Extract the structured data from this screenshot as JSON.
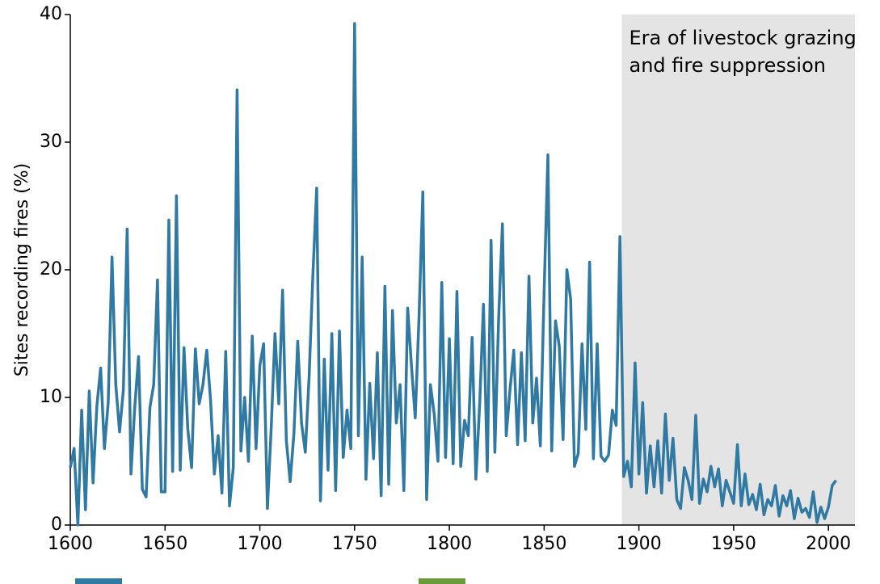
{
  "chart_data": {
    "type": "line",
    "y_label": "Sites recording fires (%)",
    "color": "#2f79a3",
    "swatch_colors": [
      "#2f79a3",
      "#6b9a3c"
    ],
    "shaded_region": {
      "x": [
        1891,
        2014
      ],
      "color": "#e4e4e4",
      "label": [
        "Era of livestock grazing",
        "and fire suppression"
      ]
    },
    "xlim": [
      1600,
      2014
    ],
    "ylim": [
      0,
      40
    ],
    "xticks": [
      1600,
      1650,
      1700,
      1750,
      1800,
      1850,
      1900,
      1950,
      2000
    ],
    "yticks": [
      0,
      10,
      20,
      30,
      40
    ],
    "x": [
      1600,
      1602,
      1604,
      1606,
      1608,
      1610,
      1612,
      1614,
      1616,
      1618,
      1620,
      1622,
      1624,
      1626,
      1628,
      1630,
      1632,
      1634,
      1636,
      1638,
      1640,
      1642,
      1644,
      1646,
      1648,
      1650,
      1652,
      1654,
      1656,
      1658,
      1660,
      1662,
      1664,
      1666,
      1668,
      1670,
      1672,
      1674,
      1676,
      1678,
      1680,
      1682,
      1684,
      1686,
      1688,
      1690,
      1692,
      1694,
      1696,
      1698,
      1700,
      1702,
      1704,
      1706,
      1708,
      1710,
      1712,
      1714,
      1716,
      1718,
      1720,
      1722,
      1724,
      1726,
      1728,
      1730,
      1732,
      1734,
      1736,
      1738,
      1740,
      1742,
      1744,
      1746,
      1748,
      1750,
      1752,
      1754,
      1756,
      1758,
      1760,
      1762,
      1764,
      1766,
      1768,
      1770,
      1772,
      1774,
      1776,
      1778,
      1780,
      1782,
      1784,
      1786,
      1788,
      1790,
      1792,
      1794,
      1796,
      1798,
      1800,
      1802,
      1804,
      1806,
      1808,
      1810,
      1812,
      1814,
      1816,
      1818,
      1820,
      1822,
      1824,
      1826,
      1828,
      1830,
      1832,
      1834,
      1836,
      1838,
      1840,
      1842,
      1844,
      1846,
      1848,
      1850,
      1852,
      1854,
      1856,
      1858,
      1860,
      1862,
      1864,
      1866,
      1868,
      1870,
      1872,
      1874,
      1876,
      1878,
      1880,
      1882,
      1884,
      1886,
      1888,
      1890,
      1892,
      1894,
      1896,
      1898,
      1900,
      1902,
      1904,
      1906,
      1908,
      1910,
      1912,
      1914,
      1916,
      1918,
      1920,
      1922,
      1924,
      1926,
      1928,
      1930,
      1932,
      1934,
      1936,
      1938,
      1940,
      1942,
      1944,
      1946,
      1948,
      1950,
      1952,
      1954,
      1956,
      1958,
      1960,
      1962,
      1964,
      1966,
      1968,
      1970,
      1972,
      1974,
      1976,
      1978,
      1980,
      1982,
      1984,
      1986,
      1988,
      1990,
      1992,
      1994,
      1996,
      1998,
      2000,
      2002,
      2004
    ],
    "values": [
      4.5,
      6,
      0,
      9,
      1.2,
      10.5,
      3.3,
      9.3,
      12.3,
      6,
      9.6,
      21,
      11,
      7.3,
      10.6,
      23.2,
      4,
      9.2,
      13.2,
      2.8,
      2.2,
      9.2,
      11,
      19.2,
      2.6,
      2.6,
      23.9,
      4.2,
      25.8,
      4.3,
      13.9,
      7.5,
      4.5,
      13.8,
      9.5,
      11,
      13.7,
      9.8,
      4,
      7,
      2.5,
      13.6,
      1.5,
      4.5,
      34.1,
      5.8,
      10,
      5,
      14.8,
      6,
      12.5,
      14.2,
      1.3,
      7.6,
      15,
      9.5,
      18.4,
      6.6,
      3.4,
      7.2,
      14.4,
      8,
      5.7,
      11.6,
      19.6,
      26.4,
      1.9,
      13,
      4.3,
      15,
      2.7,
      15.2,
      5.3,
      9,
      6,
      39.3,
      7,
      21,
      3.6,
      11.1,
      5.2,
      13.5,
      2.3,
      18.7,
      3.2,
      16.8,
      8,
      11,
      2.7,
      17,
      12.5,
      8.4,
      16.3,
      26.1,
      2,
      11,
      8.7,
      5,
      19,
      5.3,
      14.6,
      4.8,
      18.3,
      4.6,
      8.2,
      7,
      14.7,
      3.6,
      9.5,
      17.3,
      4.2,
      22.3,
      5.7,
      16.2,
      23.6,
      7,
      10.6,
      13.7,
      6.3,
      13.5,
      6.6,
      19.5,
      8,
      11.5,
      6.2,
      18.3,
      29,
      5.8,
      16,
      14,
      6.7,
      20,
      17.7,
      4.6,
      5.6,
      14.2,
      7.5,
      20.6,
      5.2,
      14.2,
      5.4,
      5,
      5.5,
      9,
      7.8,
      22.6,
      3.8,
      5,
      3,
      12.7,
      4,
      9.6,
      2.5,
      6.2,
      3,
      6.6,
      2.5,
      8.7,
      3.5,
      6.8,
      2,
      1.3,
      4.5,
      3.5,
      2,
      8.6,
      1.7,
      3.6,
      2.6,
      4.6,
      3,
      4.4,
      1.5,
      3.5,
      2.6,
      1.7,
      6.3,
      1.5,
      4,
      1.6,
      2.4,
      1.2,
      3.2,
      0.8,
      2,
      1.5,
      3.1,
      0.7,
      2.3,
      1.5,
      2.7,
      0.5,
      2.1,
      1,
      1.3,
      0.6,
      2.6,
      0.2,
      1.4,
      0.5,
      1.4,
      3.1,
      3.5
    ]
  }
}
